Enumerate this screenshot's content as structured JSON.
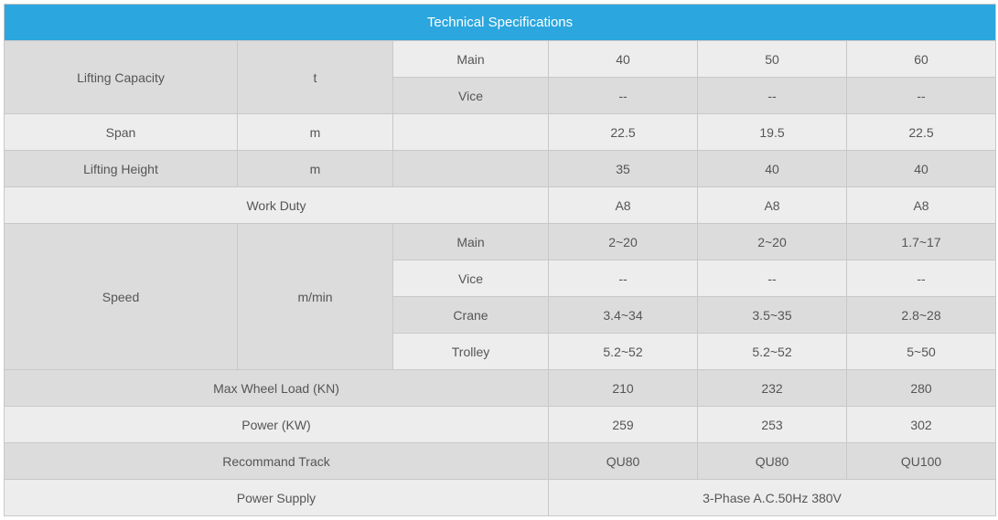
{
  "title": "Technical Specifications",
  "colors": {
    "header_bg": "#2ba6de",
    "header_text": "#ffffff",
    "cell_text": "#555555",
    "border": "#c8c8c8",
    "row_dark": "#dcdcdc",
    "row_light": "#ededed"
  },
  "rows": {
    "lifting_capacity": {
      "label": "Lifting Capacity",
      "unit": "t",
      "main": {
        "label": "Main",
        "v1": "40",
        "v2": "50",
        "v3": "60"
      },
      "vice": {
        "label": "Vice",
        "v1": "--",
        "v2": "--",
        "v3": "--"
      }
    },
    "span": {
      "label": "Span",
      "unit": "m",
      "blank": "",
      "v1": "22.5",
      "v2": "19.5",
      "v3": "22.5"
    },
    "lifting_height": {
      "label": "Lifting Height",
      "unit": "m",
      "blank": "",
      "v1": "35",
      "v2": "40",
      "v3": "40"
    },
    "work_duty": {
      "label": "Work Duty",
      "v1": "A8",
      "v2": "A8",
      "v3": "A8"
    },
    "speed": {
      "label": "Speed",
      "unit": "m/min",
      "main": {
        "label": "Main",
        "v1": "2~20",
        "v2": "2~20",
        "v3": "1.7~17"
      },
      "vice": {
        "label": "Vice",
        "v1": "--",
        "v2": "--",
        "v3": "--"
      },
      "crane": {
        "label": "Crane",
        "v1": "3.4~34",
        "v2": "3.5~35",
        "v3": "2.8~28"
      },
      "trolley": {
        "label": "Trolley",
        "v1": "5.2~52",
        "v2": "5.2~52",
        "v3": "5~50"
      }
    },
    "max_wheel_load": {
      "label": "Max Wheel Load (KN)",
      "v1": "210",
      "v2": "232",
      "v3": "280"
    },
    "power": {
      "label": "Power    (KW)",
      "v1": "259",
      "v2": "253",
      "v3": "302"
    },
    "recommand_track": {
      "label": "Recommand Track",
      "v1": "QU80",
      "v2": "QU80",
      "v3": "QU100"
    },
    "power_supply": {
      "label": "Power Supply",
      "value": "3-Phase A.C.50Hz 380V"
    }
  }
}
